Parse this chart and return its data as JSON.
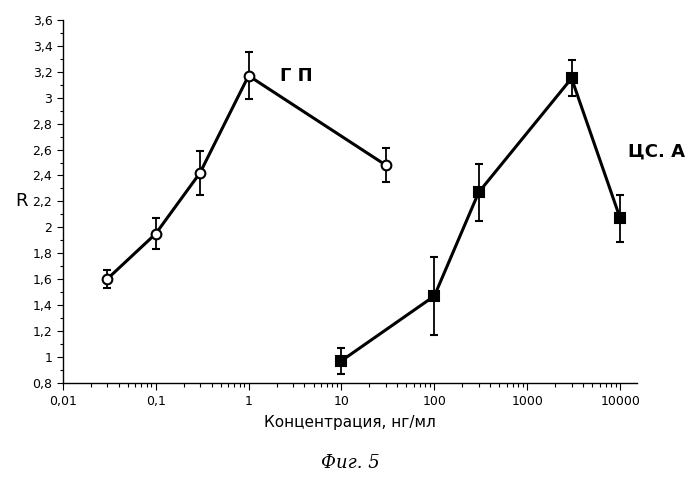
{
  "gp_x": [
    0.03,
    0.1,
    0.3,
    1,
    30
  ],
  "gp_y": [
    1.6,
    1.95,
    2.42,
    3.17,
    2.48
  ],
  "gp_yerr": [
    0.07,
    0.12,
    0.17,
    0.18,
    0.13
  ],
  "csa_x": [
    10,
    100,
    300,
    3000,
    10000
  ],
  "csa_y": [
    0.97,
    1.47,
    2.27,
    3.15,
    2.07
  ],
  "csa_yerr": [
    0.1,
    0.3,
    0.22,
    0.14,
    0.18
  ],
  "gp_label": "Г П",
  "csa_label": "ЦС. А",
  "xlabel": "Концентрация, нг/мл",
  "ylabel": "R",
  "fig_label": "Фиг. 5",
  "ylim": [
    0.8,
    3.6
  ],
  "yticks": [
    0.8,
    1.0,
    1.2,
    1.4,
    1.6,
    1.8,
    2.0,
    2.2,
    2.4,
    2.6,
    2.8,
    3.0,
    3.2,
    3.4,
    3.6
  ],
  "ytick_labels": [
    "0,8",
    "1",
    "1,2",
    "1,4",
    "1,6",
    "1,8",
    "2",
    "2,2",
    "2,4",
    "2,6",
    "2,8",
    "3",
    "3,2",
    "3,4",
    "3,6"
  ],
  "background_color": "#ffffff",
  "line_color": "#000000",
  "xtick_labels": {
    "0.01": "0,01",
    "0.1": "0,1",
    "1": "1",
    "10": "10",
    "100": "100",
    "1000": "1000",
    "10000": "10000"
  },
  "xtick_positions": [
    0.01,
    0.1,
    1,
    10,
    100,
    1000,
    10000
  ]
}
